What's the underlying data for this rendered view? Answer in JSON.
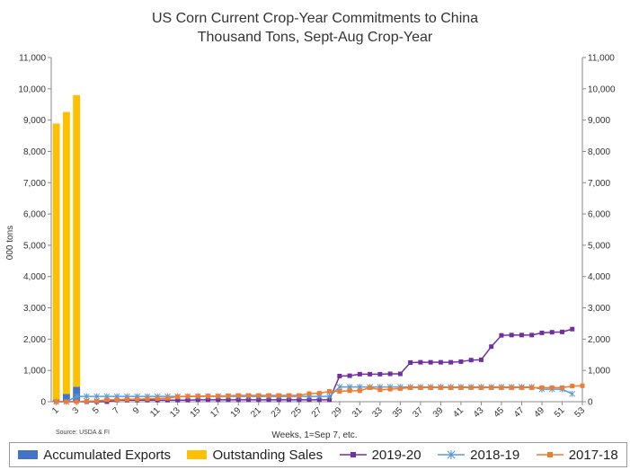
{
  "chart_data": {
    "type": "bar+line",
    "title": "US Corn Current Crop-Year Commitments to China",
    "subtitle": "Thousand Tons, Sept-Aug Crop-Year",
    "ylabel": "000 tons",
    "xlabel": "Weeks, 1=Sep 7, etc.",
    "source": "Source: USDA & FI",
    "ylim": [
      0,
      11000
    ],
    "yticks": [
      0,
      1000,
      2000,
      3000,
      4000,
      5000,
      6000,
      7000,
      8000,
      9000,
      10000,
      11000
    ],
    "ytick_labels": [
      "0",
      "1,000",
      "2,000",
      "3,000",
      "4,000",
      "5,000",
      "6,000",
      "7,000",
      "8,000",
      "9,000",
      "10,000",
      "11,000"
    ],
    "xticks": [
      1,
      3,
      5,
      7,
      9,
      11,
      13,
      15,
      17,
      19,
      21,
      23,
      25,
      27,
      29,
      31,
      33,
      35,
      37,
      39,
      41,
      43,
      45,
      47,
      49,
      51,
      53
    ],
    "xlim": [
      1,
      53
    ],
    "grid": false,
    "stacked_bars": {
      "weeks": [
        1,
        2,
        3
      ],
      "series": [
        {
          "name": "Accumulated Exports",
          "color": "#4472c4",
          "values": [
            50,
            250,
            480
          ]
        },
        {
          "name": "Outstanding Sales",
          "color": "#ffc000",
          "values": [
            8840,
            9010,
            9320
          ]
        }
      ]
    },
    "lines": [
      {
        "name": "2019-20",
        "color": "#7030a0",
        "marker": "square",
        "x": [
          1,
          2,
          3,
          4,
          5,
          6,
          7,
          8,
          9,
          10,
          11,
          12,
          13,
          14,
          15,
          16,
          17,
          18,
          19,
          20,
          21,
          22,
          23,
          24,
          25,
          26,
          27,
          28,
          29,
          30,
          31,
          32,
          33,
          34,
          35,
          36,
          37,
          38,
          39,
          40,
          41,
          42,
          43,
          44,
          45,
          46,
          47,
          48,
          49,
          50,
          51,
          52
        ],
        "values": [
          0,
          0,
          0,
          0,
          0,
          0,
          50,
          50,
          50,
          50,
          50,
          50,
          50,
          50,
          60,
          60,
          60,
          60,
          60,
          60,
          60,
          60,
          60,
          60,
          60,
          60,
          60,
          60,
          820,
          830,
          880,
          880,
          880,
          890,
          890,
          1250,
          1260,
          1260,
          1260,
          1260,
          1280,
          1330,
          1340,
          1760,
          2120,
          2130,
          2130,
          2130,
          2200,
          2220,
          2230,
          2320
        ]
      },
      {
        "name": "2018-19",
        "color": "#5b9bd5",
        "marker": "star",
        "x": [
          1,
          2,
          3,
          4,
          5,
          6,
          7,
          8,
          9,
          10,
          11,
          12,
          13,
          14,
          15,
          16,
          17,
          18,
          19,
          20,
          21,
          22,
          23,
          24,
          25,
          26,
          27,
          28,
          29,
          30,
          31,
          32,
          33,
          34,
          35,
          36,
          37,
          38,
          39,
          40,
          41,
          42,
          43,
          44,
          45,
          46,
          47,
          48,
          49,
          50,
          51,
          52
        ],
        "values": [
          0,
          0,
          170,
          170,
          170,
          170,
          170,
          170,
          170,
          170,
          170,
          170,
          170,
          170,
          170,
          170,
          170,
          170,
          170,
          170,
          170,
          170,
          170,
          170,
          170,
          170,
          170,
          170,
          470,
          470,
          470,
          470,
          470,
          470,
          470,
          470,
          470,
          470,
          470,
          470,
          470,
          470,
          470,
          470,
          470,
          470,
          470,
          470,
          400,
          400,
          400,
          250
        ]
      },
      {
        "name": "2017-18",
        "color": "#ed7d31",
        "marker": "square",
        "x": [
          1,
          2,
          3,
          4,
          5,
          6,
          7,
          8,
          9,
          10,
          11,
          12,
          13,
          14,
          15,
          16,
          17,
          18,
          19,
          20,
          21,
          22,
          23,
          24,
          25,
          26,
          27,
          28,
          29,
          30,
          31,
          32,
          33,
          34,
          35,
          36,
          37,
          38,
          39,
          40,
          41,
          42,
          43,
          44,
          45,
          46,
          47,
          48,
          49,
          50,
          51,
          52,
          53
        ],
        "values": [
          0,
          0,
          0,
          20,
          20,
          60,
          60,
          80,
          80,
          90,
          100,
          110,
          160,
          170,
          180,
          180,
          180,
          190,
          200,
          200,
          200,
          200,
          200,
          200,
          200,
          260,
          270,
          330,
          330,
          350,
          350,
          450,
          380,
          400,
          420,
          450,
          450,
          450,
          450,
          450,
          450,
          450,
          450,
          450,
          450,
          450,
          450,
          450,
          450,
          450,
          450,
          500,
          510
        ]
      }
    ]
  },
  "legend": {
    "items": [
      {
        "label": "Accumulated Exports",
        "color": "#4472c4"
      },
      {
        "label": "Outstanding Sales",
        "color": "#ffc000"
      },
      {
        "label": "2019-20",
        "color": "#7030a0"
      },
      {
        "label": "2018-19",
        "color": "#5b9bd5"
      },
      {
        "label": "2017-18",
        "color": "#ed7d31"
      }
    ]
  }
}
